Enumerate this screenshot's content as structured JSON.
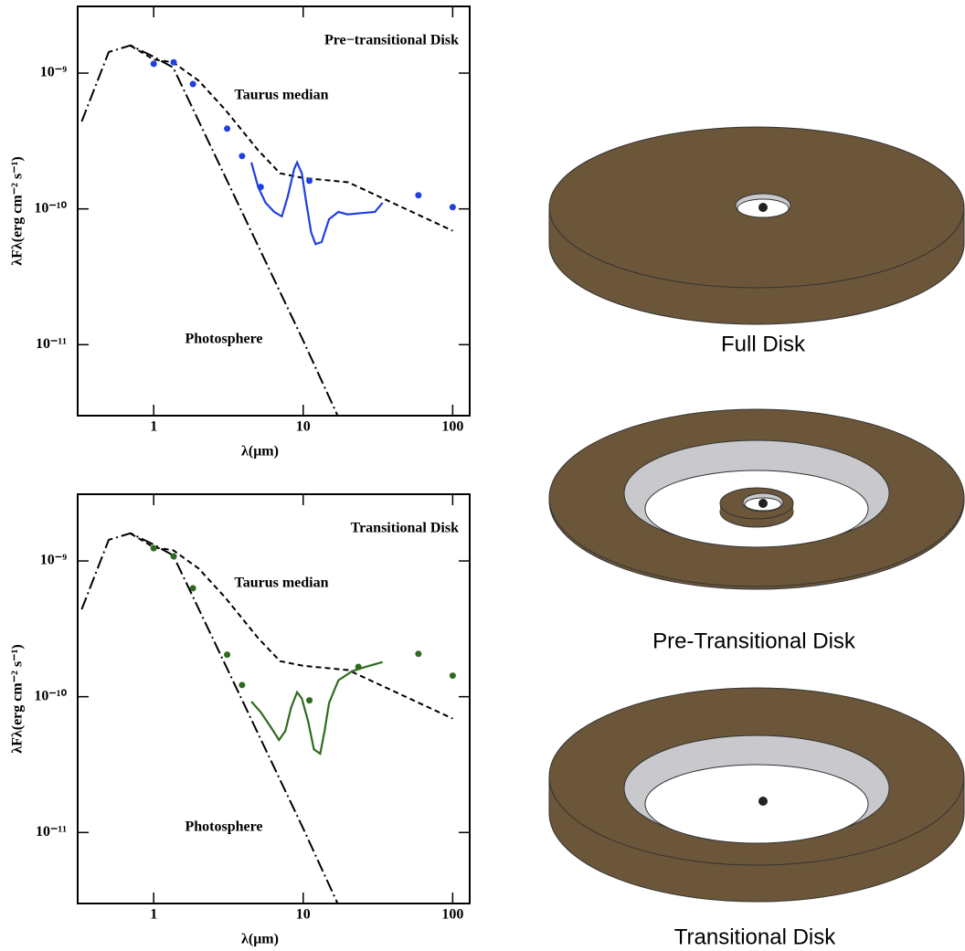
{
  "chart_data": [
    {
      "type": "line",
      "title": "Pre−transitional Disk",
      "xlabel": "λ(μm)",
      "ylabel": "λFλ(erg cm⁻² s⁻¹)",
      "xscale": "log",
      "yscale": "log",
      "xlim": [
        0.31,
        130
      ],
      "ylim": [
        3e-12,
        3.1e-09
      ],
      "xticks": [
        1,
        10,
        100
      ],
      "yticks": [
        {
          "value": 1e-09,
          "label": "10⁻⁹"
        },
        {
          "value": 1e-10,
          "label": "10⁻¹⁰"
        },
        {
          "value": 1e-11,
          "label": "10⁻¹¹"
        }
      ],
      "series": [
        {
          "name": "Photosphere",
          "color": "#000000",
          "style": "dashdot",
          "x": [
            0.33,
            0.5,
            0.7,
            1.0,
            1.35,
            3,
            10,
            17
          ],
          "values": [
            4.4e-10,
            1.43e-09,
            1.6e-09,
            1.32e-09,
            1.1e-09,
            1.74e-10,
            1.07e-11,
            3e-12
          ]
        },
        {
          "name": "Taurus median",
          "color": "#000000",
          "style": "dashed",
          "x": [
            0.7,
            1.0,
            1.35,
            2,
            3,
            5,
            7,
            10,
            20,
            100
          ],
          "values": [
            1.59e-09,
            1.26e-09,
            1.2e-09,
            8.8e-10,
            5.4e-10,
            2.7e-10,
            1.83e-10,
            1.69e-10,
            1.57e-10,
            6.9e-11
          ]
        },
        {
          "color": "#1f3fe0",
          "style": "solid",
          "x": [
            4.5,
            5.0,
            5.6,
            6.4,
            7.2,
            7.9,
            8.7,
            9.1,
            9.8,
            10.5,
            11.3,
            12.1,
            13.3,
            14.9,
            17.2,
            19.8,
            24.4,
            30.2,
            34
          ],
          "values": [
            2.2e-10,
            1.45e-10,
            1.11e-10,
            9.5e-11,
            8.8e-11,
            1.24e-10,
            1.97e-10,
            2.2e-10,
            1.83e-10,
            1.11e-10,
            6.7e-11,
            5.5e-11,
            5.7e-11,
            8.4e-11,
            9.5e-11,
            9.1e-11,
            9.3e-11,
            9.5e-11,
            1.11e-10
          ]
        },
        {
          "color": "#1f3fe0",
          "style": "points",
          "x": [
            1.0,
            1.36,
            1.83,
            3.1,
            3.9,
            5.2,
            11,
            59,
            100
          ],
          "values": [
            1.17e-09,
            1.2e-09,
            8.3e-10,
            3.9e-10,
            2.45e-10,
            1.45e-10,
            1.61e-10,
            1.26e-10,
            1.03e-10
          ]
        }
      ]
    },
    {
      "type": "line",
      "title": "Transitional Disk",
      "xlabel": "λ(μm)",
      "ylabel": "λFλ(erg cm⁻² s⁻¹)",
      "xscale": "log",
      "yscale": "log",
      "xlim": [
        0.31,
        130
      ],
      "ylim": [
        3e-12,
        3.1e-09
      ],
      "xticks": [
        1,
        10,
        100
      ],
      "yticks": [
        {
          "value": 1e-09,
          "label": "10⁻⁹"
        },
        {
          "value": 1e-10,
          "label": "10⁻¹⁰"
        },
        {
          "value": 1e-11,
          "label": "10⁻¹¹"
        }
      ],
      "series": [
        {
          "name": "Photosphere",
          "color": "#000000",
          "style": "dashdot",
          "x": [
            0.33,
            0.5,
            0.7,
            1.0,
            1.35,
            3,
            10,
            17
          ],
          "values": [
            4.4e-10,
            1.43e-09,
            1.6e-09,
            1.32e-09,
            1.1e-09,
            1.74e-10,
            1.07e-11,
            3e-12
          ]
        },
        {
          "name": "Taurus median",
          "color": "#000000",
          "style": "dashed",
          "x": [
            0.7,
            1.0,
            1.35,
            2,
            3,
            5,
            7,
            10,
            20,
            100
          ],
          "values": [
            1.59e-09,
            1.26e-09,
            1.2e-09,
            8.8e-10,
            5.4e-10,
            2.7e-10,
            1.83e-10,
            1.69e-10,
            1.57e-10,
            6.9e-11
          ]
        },
        {
          "color": "#2e6b1f",
          "style": "solid",
          "x": [
            4.5,
            5.2,
            6.0,
            6.9,
            7.6,
            8.3,
            9.1,
            9.8,
            10.8,
            11.8,
            13.0,
            13.9,
            14.9,
            17.2,
            21.2,
            26.2,
            34
          ],
          "values": [
            9.2e-11,
            7.7e-11,
            6.1e-11,
            4.8e-11,
            5.6e-11,
            8.3e-11,
            1.08e-10,
            9.7e-11,
            6.6e-11,
            4.1e-11,
            3.8e-11,
            5.6e-11,
            9e-11,
            1.32e-10,
            1.54e-10,
            1.66e-10,
            1.8e-10
          ]
        },
        {
          "color": "#2e6b1f",
          "style": "points",
          "x": [
            1.0,
            1.36,
            1.83,
            3.1,
            3.9,
            11,
            23.4,
            59,
            100
          ],
          "values": [
            1.24e-09,
            1.08e-09,
            6.3e-10,
            2.04e-10,
            1.22e-10,
            9.4e-11,
            1.66e-10,
            2.07e-10,
            1.43e-10
          ]
        }
      ]
    }
  ],
  "diagram": {
    "labels": [
      "Full Disk",
      "Pre-Transitional Disk",
      "Transitional Disk"
    ]
  }
}
